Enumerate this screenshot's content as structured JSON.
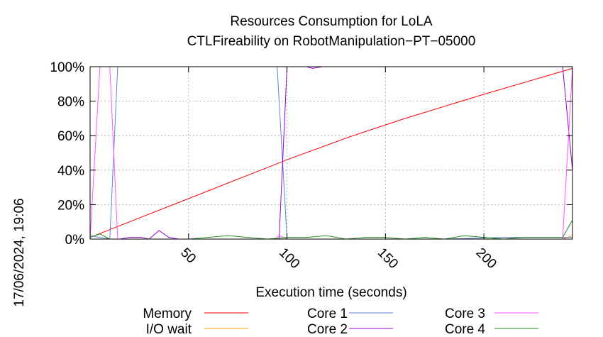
{
  "chart_data": {
    "type": "line",
    "title": "Resources Consumption for LoLA",
    "subtitle": "CTLFireability on RobotManipulation−PT−05000",
    "xlabel": "Execution time (seconds)",
    "ylabel": "",
    "side_label": "17/06/2024, 19:06",
    "xlim": [
      0,
      245
    ],
    "ylim": [
      0,
      100
    ],
    "x_ticks": [
      50,
      100,
      150,
      200
    ],
    "x_tick_labels": [
      "50",
      "100",
      "150",
      "200"
    ],
    "y_ticks": [
      0,
      20,
      40,
      60,
      80,
      100
    ],
    "y_tick_labels": [
      "0%",
      "20%",
      "40%",
      "60%",
      "80%",
      "100%"
    ],
    "grid": true,
    "legend_position": "bottom",
    "series": [
      {
        "name": "Memory",
        "color": "#ff0000",
        "points": [
          [
            0,
            1
          ],
          [
            20,
            10
          ],
          [
            60,
            28
          ],
          [
            100,
            46
          ],
          [
            131,
            59
          ],
          [
            160,
            70
          ],
          [
            200,
            84
          ],
          [
            245,
            99
          ]
        ]
      },
      {
        "name": "I/O wait",
        "color": "#ffa500",
        "points": [
          [
            0,
            0
          ],
          [
            50,
            0
          ],
          [
            100,
            0
          ],
          [
            150,
            0
          ],
          [
            200,
            0
          ],
          [
            240,
            0
          ],
          [
            245,
            2
          ]
        ]
      },
      {
        "name": "Core 1",
        "color": "#6080d0",
        "points": [
          [
            0,
            2
          ],
          [
            5,
            1
          ],
          [
            10,
            0
          ],
          [
            14,
            100
          ],
          [
            50,
            100
          ],
          [
            95,
            100
          ],
          [
            100,
            0
          ],
          [
            105,
            0
          ],
          [
            110,
            0
          ],
          [
            140,
            0
          ],
          [
            180,
            0
          ],
          [
            210,
            1
          ],
          [
            220,
            1
          ],
          [
            245,
            1
          ]
        ]
      },
      {
        "name": "Core 2",
        "color": "#9400d3",
        "points": [
          [
            0,
            0
          ],
          [
            5,
            0
          ],
          [
            10,
            0
          ],
          [
            15,
            0
          ],
          [
            20,
            1
          ],
          [
            26,
            1
          ],
          [
            30,
            0
          ],
          [
            35,
            5
          ],
          [
            40,
            1
          ],
          [
            45,
            0
          ],
          [
            94,
            0
          ],
          [
            96,
            0
          ],
          [
            100,
            100
          ],
          [
            110,
            100
          ],
          [
            113,
            99
          ],
          [
            118,
            100
          ],
          [
            150,
            100
          ],
          [
            200,
            100
          ],
          [
            240,
            100
          ],
          [
            245,
            40
          ]
        ]
      },
      {
        "name": "Core 3",
        "color": "#ff55ff",
        "points": [
          [
            0,
            0
          ],
          [
            5,
            100
          ],
          [
            10,
            100
          ],
          [
            14,
            0
          ],
          [
            20,
            0
          ],
          [
            94,
            0
          ],
          [
            96,
            2
          ],
          [
            100,
            0
          ],
          [
            110,
            0
          ],
          [
            200,
            0
          ],
          [
            240,
            0
          ],
          [
            245,
            100
          ]
        ]
      },
      {
        "name": "Core 4",
        "color": "#228b22",
        "points": [
          [
            0,
            1
          ],
          [
            5,
            3
          ],
          [
            10,
            0
          ],
          [
            50,
            0
          ],
          [
            60,
            1
          ],
          [
            70,
            2
          ],
          [
            80,
            1
          ],
          [
            90,
            0
          ],
          [
            100,
            1
          ],
          [
            110,
            1
          ],
          [
            120,
            2
          ],
          [
            130,
            0
          ],
          [
            140,
            1
          ],
          [
            150,
            1
          ],
          [
            160,
            0
          ],
          [
            170,
            1
          ],
          [
            180,
            0
          ],
          [
            190,
            2
          ],
          [
            200,
            1
          ],
          [
            210,
            0
          ],
          [
            220,
            1
          ],
          [
            230,
            1
          ],
          [
            240,
            1
          ],
          [
            245,
            11
          ]
        ]
      }
    ]
  }
}
